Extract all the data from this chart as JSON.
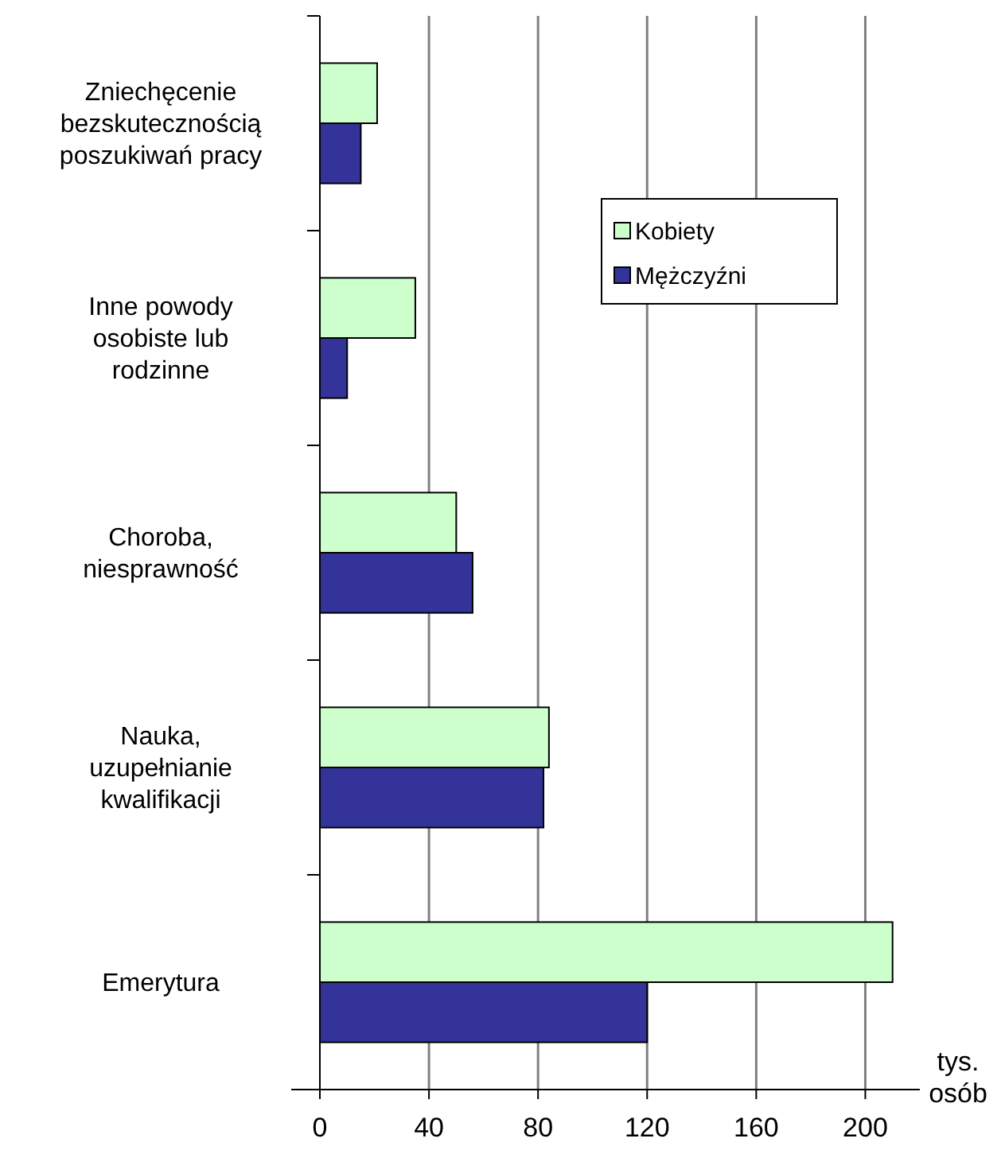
{
  "chart_data": {
    "type": "bar",
    "orientation": "horizontal",
    "xlabel": "tys. osób",
    "categories": [
      "Zniechęcenie bezskutecznością poszukiwań pracy",
      "Inne powody osobiste lub rodzinne",
      "Choroba, niesprawność",
      "Nauka, uzupełnianie kwalifikacji",
      "Emerytura"
    ],
    "series": [
      {
        "name": "Kobiety",
        "color": "#ccffcc",
        "values": [
          21,
          35,
          50,
          84,
          210
        ]
      },
      {
        "name": "Mężczyźni",
        "color": "#333399",
        "values": [
          15,
          10,
          56,
          82,
          120
        ]
      }
    ],
    "xlim": [
      0,
      220
    ],
    "xticks": [
      0,
      40,
      80,
      120,
      160,
      200
    ],
    "grid": "x",
    "legend": "top right"
  }
}
